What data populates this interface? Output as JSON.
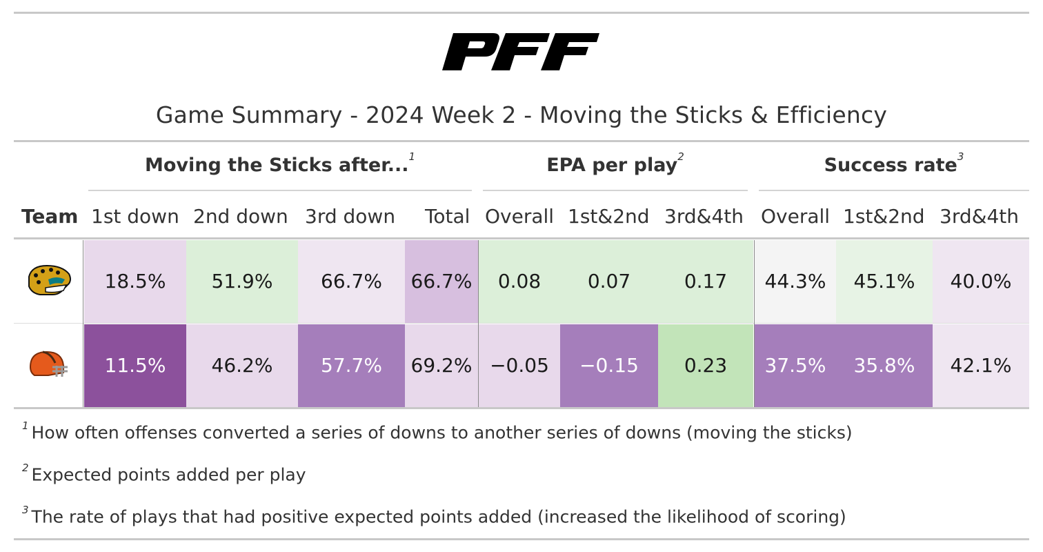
{
  "logo": {
    "text": "PFF",
    "icon": "pff-logo"
  },
  "title": "Game Summary - 2024 Week 2 - Moving the Sticks & Efficiency",
  "spanners": [
    {
      "label": "Moving the Sticks after...",
      "mark": "1"
    },
    {
      "label": "EPA per play",
      "mark": "2"
    },
    {
      "label": "Success rate",
      "mark": "3"
    }
  ],
  "columns": [
    "Team",
    "1st down",
    "2nd down",
    "3rd down",
    "Total",
    "Overall",
    "1st&2nd",
    "3rd&4th",
    "Overall",
    "1st&2nd",
    "3rd&4th"
  ],
  "rows": [
    {
      "team_icon": "jaguars-helmet-icon",
      "cells": [
        {
          "value": "18.5%",
          "bg": "#e8d9eb"
        },
        {
          "value": "51.9%",
          "bg": "#dcefd9"
        },
        {
          "value": "66.7%",
          "bg": "#efe6f1"
        },
        {
          "value": "66.7%",
          "bg": "#d7bfdf"
        },
        {
          "value": "0.08",
          "bg": "#dcefd9"
        },
        {
          "value": "0.07",
          "bg": "#dcefd9"
        },
        {
          "value": "0.17",
          "bg": "#dcefd9"
        },
        {
          "value": "44.3%",
          "bg": "#f4f4f4"
        },
        {
          "value": "45.1%",
          "bg": "#e7f3e5"
        },
        {
          "value": "40.0%",
          "bg": "#efe6f1"
        }
      ]
    },
    {
      "team_icon": "browns-helmet-icon",
      "cells": [
        {
          "value": "11.5%",
          "bg": "#8c519c",
          "light": true
        },
        {
          "value": "46.2%",
          "bg": "#e8d9eb"
        },
        {
          "value": "57.7%",
          "bg": "#a57ebb",
          "light": true
        },
        {
          "value": "69.2%",
          "bg": "#e8d9eb"
        },
        {
          "value": "−0.05",
          "bg": "#e8d9eb"
        },
        {
          "value": "−0.15",
          "bg": "#a57ebb",
          "light": true
        },
        {
          "value": "0.23",
          "bg": "#c2e4b9"
        },
        {
          "value": "37.5%",
          "bg": "#a57ebb",
          "light": true
        },
        {
          "value": "35.8%",
          "bg": "#a57ebb",
          "light": true
        },
        {
          "value": "42.1%",
          "bg": "#efe6f1"
        }
      ]
    }
  ],
  "footnotes": [
    {
      "mark": "1",
      "text": "How often offenses converted a series of downs to another series of downs (moving the sticks)"
    },
    {
      "mark": "2",
      "text": "Expected points added per play"
    },
    {
      "mark": "3",
      "text": "The rate of plays that had positive expected points added (increased the likelihood of scoring)"
    }
  ],
  "chart_data": {
    "type": "table",
    "title": "Game Summary - 2024 Week 2 - Moving the Sticks & Efficiency",
    "column_groups": [
      "Moving the Sticks after...",
      "EPA per play",
      "Success rate"
    ],
    "columns": [
      "Team",
      "1st down",
      "2nd down",
      "3rd down",
      "Total",
      "Overall",
      "1st&2nd",
      "3rd&4th",
      "Overall",
      "1st&2nd",
      "3rd&4th"
    ],
    "rows": [
      [
        "Jaguars",
        "18.5%",
        "51.9%",
        "66.7%",
        "66.7%",
        0.08,
        0.07,
        0.17,
        "44.3%",
        "45.1%",
        "40.0%"
      ],
      [
        "Browns",
        "11.5%",
        "46.2%",
        "57.7%",
        "69.2%",
        -0.05,
        -0.15,
        0.23,
        "37.5%",
        "35.8%",
        "42.1%"
      ]
    ]
  }
}
